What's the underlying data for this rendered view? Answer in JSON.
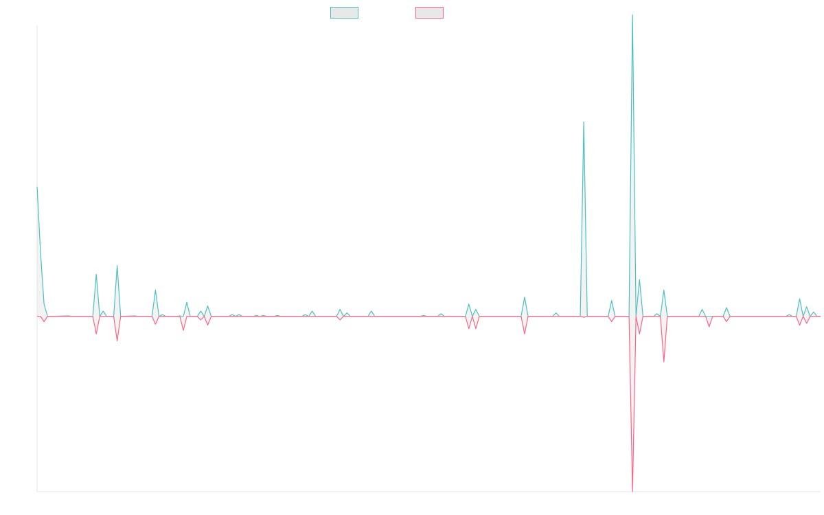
{
  "chart_data": {
    "type": "line",
    "title": "",
    "xlabel": "",
    "ylabel": "",
    "grid": false,
    "legend_position": "top-center",
    "ylim": [
      -1.0,
      1.66
    ],
    "series": [
      {
        "name": "",
        "color": "#4BC0C0",
        "fill": "#E8E8E8",
        "points": [
          [
            0,
            0.74
          ],
          [
            1,
            0.36
          ],
          [
            2,
            0.07
          ],
          [
            3,
            0.0
          ],
          [
            4,
            0.0
          ],
          [
            9,
            0.003
          ],
          [
            10,
            0.0
          ],
          [
            16,
            0.0
          ],
          [
            17,
            0.24
          ],
          [
            18,
            0.0
          ],
          [
            19,
            0.03
          ],
          [
            20,
            0.0
          ],
          [
            21,
            0.0
          ],
          [
            22,
            0.0
          ],
          [
            23,
            0.29
          ],
          [
            24,
            0.0
          ],
          [
            28,
            0.003
          ],
          [
            29,
            0.0
          ],
          [
            33,
            0.0
          ],
          [
            34,
            0.15
          ],
          [
            35,
            0.0
          ],
          [
            36,
            0.01
          ],
          [
            37,
            0.0
          ],
          [
            40,
            0.0
          ],
          [
            41,
            0.003
          ],
          [
            42,
            0.0
          ],
          [
            43,
            0.08
          ],
          [
            44,
            0.0
          ],
          [
            46,
            0.0
          ],
          [
            47,
            0.03
          ],
          [
            48,
            0.0
          ],
          [
            49,
            0.06
          ],
          [
            50,
            0.0
          ],
          [
            55,
            0.0
          ],
          [
            56,
            0.01
          ],
          [
            57,
            0.0
          ],
          [
            58,
            0.01
          ],
          [
            59,
            0.0
          ],
          [
            62,
            0.0
          ],
          [
            63,
            0.005
          ],
          [
            64,
            0.0
          ],
          [
            65,
            0.005
          ],
          [
            66,
            0.0
          ],
          [
            68,
            0.0
          ],
          [
            69,
            0.005
          ],
          [
            70,
            0.0
          ],
          [
            76,
            0.0
          ],
          [
            77,
            0.01
          ],
          [
            78,
            0.0
          ],
          [
            79,
            0.03
          ],
          [
            80,
            0.0
          ],
          [
            86,
            0.0
          ],
          [
            87,
            0.04
          ],
          [
            88,
            0.0
          ],
          [
            89,
            0.02
          ],
          [
            90,
            0.0
          ],
          [
            95,
            0.0
          ],
          [
            96,
            0.03
          ],
          [
            97,
            0.0
          ],
          [
            110,
            0.0
          ],
          [
            111,
            0.005
          ],
          [
            112,
            0.0
          ],
          [
            115,
            0.0
          ],
          [
            116,
            0.015
          ],
          [
            117,
            0.0
          ],
          [
            123,
            0.0
          ],
          [
            124,
            0.07
          ],
          [
            125,
            0.0
          ],
          [
            126,
            0.04
          ],
          [
            127,
            0.0
          ],
          [
            139,
            0.0
          ],
          [
            140,
            0.11
          ],
          [
            141,
            0.0
          ],
          [
            148,
            0.0
          ],
          [
            149,
            0.02
          ],
          [
            150,
            0.0
          ],
          [
            156,
            0.0
          ],
          [
            157,
            1.11
          ],
          [
            158,
            0.0
          ],
          [
            164,
            0.0
          ],
          [
            165,
            0.09
          ],
          [
            166,
            0.0
          ],
          [
            170,
            0.0
          ],
          [
            171,
            1.72
          ],
          [
            172,
            0.0
          ],
          [
            173,
            0.21
          ],
          [
            174,
            0.0
          ],
          [
            177,
            0.0
          ],
          [
            178,
            0.015
          ],
          [
            179,
            0.0
          ],
          [
            180,
            0.15
          ],
          [
            181,
            0.0
          ],
          [
            190,
            0.0
          ],
          [
            191,
            0.04
          ],
          [
            192,
            0.0
          ],
          [
            197,
            0.0
          ],
          [
            198,
            0.05
          ],
          [
            199,
            0.0
          ],
          [
            215,
            0.0
          ],
          [
            216,
            0.01
          ],
          [
            217,
            0.0
          ],
          [
            218,
            0.0
          ],
          [
            219,
            0.1
          ],
          [
            220,
            0.0
          ],
          [
            221,
            0.055
          ],
          [
            222,
            0.0
          ],
          [
            223,
            0.025
          ],
          [
            224,
            0.0
          ],
          [
            225,
            0.0
          ]
        ]
      },
      {
        "name": "",
        "color": "#FF6384",
        "fill": "#E8E8E8",
        "points": [
          [
            0,
            0.0
          ],
          [
            1,
            0.0
          ],
          [
            2,
            -0.03
          ],
          [
            3,
            0.0
          ],
          [
            16,
            0.0
          ],
          [
            17,
            -0.1
          ],
          [
            18,
            0.0
          ],
          [
            19,
            0.0
          ],
          [
            20,
            0.0
          ],
          [
            22,
            0.0
          ],
          [
            23,
            -0.14
          ],
          [
            24,
            0.0
          ],
          [
            33,
            0.0
          ],
          [
            34,
            -0.045
          ],
          [
            35,
            0.0
          ],
          [
            40,
            0.0
          ],
          [
            41,
            0.0
          ],
          [
            42,
            -0.08
          ],
          [
            43,
            0.0
          ],
          [
            46,
            0.0
          ],
          [
            47,
            -0.02
          ],
          [
            48,
            0.0
          ],
          [
            49,
            -0.05
          ],
          [
            50,
            0.0
          ],
          [
            86,
            0.0
          ],
          [
            87,
            -0.02
          ],
          [
            88,
            0.0
          ],
          [
            123,
            0.0
          ],
          [
            124,
            -0.07
          ],
          [
            125,
            0.0
          ],
          [
            126,
            -0.07
          ],
          [
            127,
            0.0
          ],
          [
            139,
            0.0
          ],
          [
            140,
            -0.1
          ],
          [
            141,
            0.0
          ],
          [
            156,
            0.0
          ],
          [
            157,
            -0.005
          ],
          [
            158,
            0.0
          ],
          [
            164,
            0.0
          ],
          [
            165,
            -0.03
          ],
          [
            166,
            0.0
          ],
          [
            170,
            0.0
          ],
          [
            171,
            -1.0
          ],
          [
            172,
            0.0
          ],
          [
            173,
            -0.1
          ],
          [
            174,
            0.0
          ],
          [
            179,
            0.0
          ],
          [
            180,
            -0.26
          ],
          [
            181,
            0.0
          ],
          [
            192,
            0.0
          ],
          [
            193,
            -0.06
          ],
          [
            194,
            0.0
          ],
          [
            197,
            0.0
          ],
          [
            198,
            -0.03
          ],
          [
            199,
            0.0
          ],
          [
            218,
            0.0
          ],
          [
            219,
            -0.05
          ],
          [
            220,
            0.0
          ],
          [
            221,
            -0.04
          ],
          [
            222,
            0.0
          ],
          [
            225,
            0.0
          ]
        ]
      }
    ]
  }
}
